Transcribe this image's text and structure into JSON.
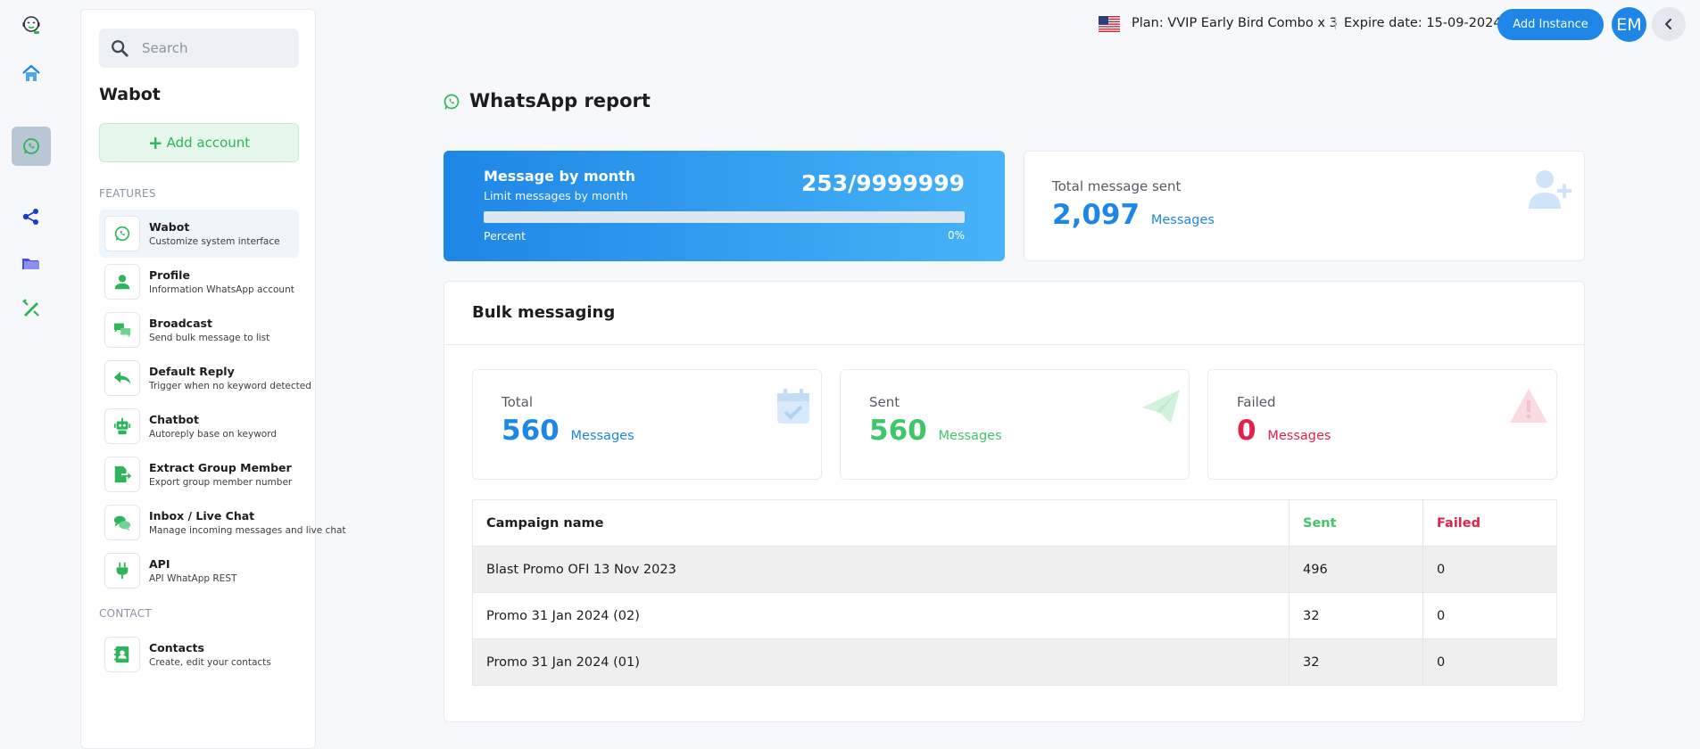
{
  "rail": {
    "items": [
      {
        "name": "logo-icon"
      },
      {
        "name": "home-icon"
      },
      {
        "name": "whatsapp-icon"
      },
      {
        "name": "share-nodes-icon"
      },
      {
        "name": "folder-icon"
      },
      {
        "name": "pen-ruler-icon"
      }
    ]
  },
  "sidebar": {
    "search_placeholder": "Search",
    "title": "Wabot",
    "add_account_label": "Add account",
    "features_label": "FEATURES",
    "contact_label": "CONTACT",
    "items": [
      {
        "title": "Wabot",
        "subtitle": "Customize system interface",
        "icon": "whatsapp-icon"
      },
      {
        "title": "Profile",
        "subtitle": "Information WhatsApp account",
        "icon": "user-icon"
      },
      {
        "title": "Broadcast",
        "subtitle": "Send bulk message to list",
        "icon": "chat-bubbles-icon"
      },
      {
        "title": "Default Reply",
        "subtitle": "Trigger when no keyword detected",
        "icon": "reply-icon"
      },
      {
        "title": "Chatbot",
        "subtitle": "Autoreply base on keyword",
        "icon": "robot-icon"
      },
      {
        "title": "Extract Group Member",
        "subtitle": "Export group member number",
        "icon": "export-icon"
      },
      {
        "title": "Inbox / Live Chat",
        "subtitle": "Manage incoming messages and live chat",
        "icon": "comments-icon"
      },
      {
        "title": "API",
        "subtitle": "API WhatApp REST",
        "icon": "plug-icon"
      }
    ],
    "contact_items": [
      {
        "title": "Contacts",
        "subtitle": "Create, edit your contacts",
        "icon": "address-book-icon"
      }
    ]
  },
  "topbar": {
    "plan": "Plan: VVIP Early Bird Combo x 3",
    "separator": "|",
    "expire": "Expire date: 15-09-2024",
    "add_instance_label": "Add Instance",
    "avatar_initials": "EM"
  },
  "main": {
    "page_title": "WhatsApp report",
    "month_card": {
      "title": "Message by month",
      "subtitle": "Limit messages by month",
      "value": "253/9999999",
      "percent_label": "Percent",
      "percent_value": "0%",
      "progress": 0
    },
    "total_card": {
      "label": "Total message sent",
      "value": "2,097",
      "unit": "Messages"
    },
    "bulk": {
      "title": "Bulk messaging",
      "stats": [
        {
          "label": "Total",
          "value": "560",
          "unit": "Messages",
          "icon": "calendar-check-icon"
        },
        {
          "label": "Sent",
          "value": "560",
          "unit": "Messages",
          "icon": "paper-plane-icon"
        },
        {
          "label": "Failed",
          "value": "0",
          "unit": "Messages",
          "icon": "warning-icon"
        }
      ],
      "table": {
        "headers": [
          "Campaign name",
          "Sent",
          "Failed"
        ],
        "rows": [
          [
            "Blast Promo OFI 13 Nov 2023",
            "496",
            "0"
          ],
          [
            "Promo 31 Jan 2024 (02)",
            "32",
            "0"
          ],
          [
            "Promo 31 Jan 2024 (01)",
            "32",
            "0"
          ]
        ]
      }
    }
  },
  "colors": {
    "accent": "#1d86e6",
    "green": "#3fc66a",
    "red": "#e1224a"
  }
}
